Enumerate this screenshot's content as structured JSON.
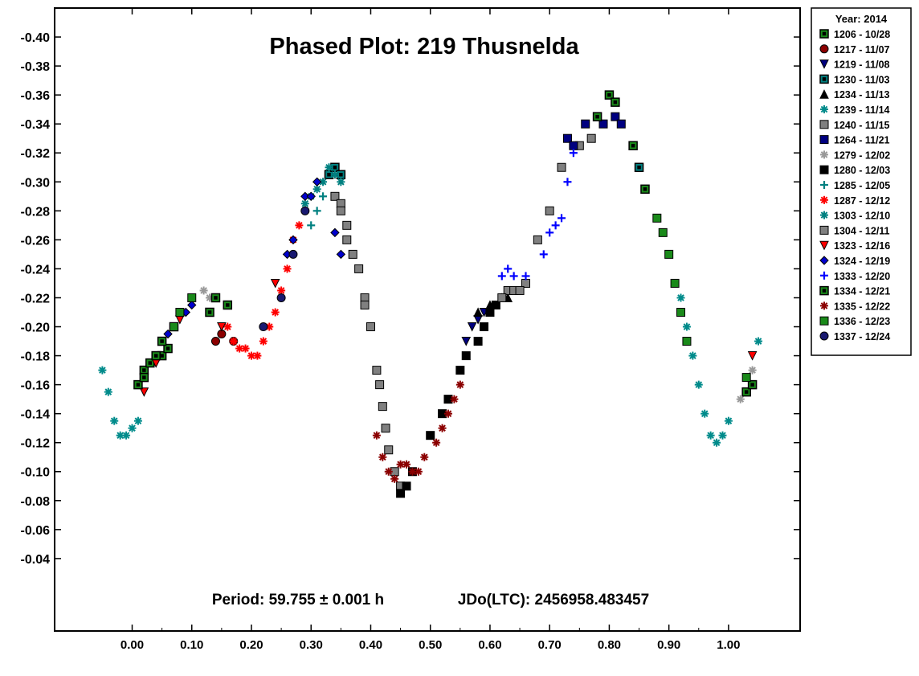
{
  "chart_data": {
    "type": "scatter",
    "title": "Phased Plot: 219 Thusnelda",
    "xlabel": "",
    "ylabel": "",
    "xlim": [
      -0.13,
      1.12
    ],
    "ylim": [
      -0.42,
      0.01
    ],
    "y_inverted": true,
    "x_ticks": [
      0.0,
      0.1,
      0.2,
      0.3,
      0.4,
      0.5,
      0.6,
      0.7,
      0.8,
      0.9,
      1.0
    ],
    "x_tick_labels": [
      "0.00",
      "0.10",
      "0.20",
      "0.30",
      "0.40",
      "0.50",
      "0.60",
      "0.70",
      "0.80",
      "0.90",
      "1.00"
    ],
    "y_ticks": [
      -0.4,
      -0.38,
      -0.36,
      -0.34,
      -0.32,
      -0.3,
      -0.28,
      -0.26,
      -0.24,
      -0.22,
      -0.2,
      -0.18,
      -0.16,
      -0.14,
      -0.12,
      -0.1,
      -0.08,
      -0.06,
      -0.04
    ],
    "y_tick_labels": [
      "-0.40",
      "-0.38",
      "-0.36",
      "-0.34",
      "-0.32",
      "-0.30",
      "-0.28",
      "-0.26",
      "-0.24",
      "-0.22",
      "-0.20",
      "-0.18",
      "-0.16",
      "-0.14",
      "-0.12",
      "-0.10",
      "-0.08",
      "-0.06",
      "-0.04"
    ],
    "grid": false,
    "legend_title": "Year: 2014",
    "legend_position": "outside-right-top",
    "annotations": [
      {
        "text": "Period: 59.755 ± 0.001 h",
        "position": "bottom-center-left"
      },
      {
        "text": "JDo(LTC): 2456958.483457",
        "position": "bottom-center-right"
      }
    ],
    "series": [
      {
        "name": "1206 - 10/28",
        "marker": "square-outline",
        "color": "#1a8a1a",
        "points": [
          [
            0.02,
            -0.17
          ],
          [
            0.03,
            -0.175
          ],
          [
            0.05,
            -0.18
          ],
          [
            0.06,
            -0.185
          ],
          [
            0.07,
            -0.2
          ]
        ]
      },
      {
        "name": "1217 - 11/07",
        "marker": "circle",
        "color": "#8b0000",
        "points": [
          [
            0.14,
            -0.19
          ],
          [
            0.15,
            -0.195
          ],
          [
            0.17,
            -0.19
          ]
        ]
      },
      {
        "name": "1219 - 11/08",
        "marker": "triangle-down",
        "color": "#000080",
        "points": [
          [
            0.56,
            -0.19
          ],
          [
            0.57,
            -0.2
          ],
          [
            0.58,
            -0.205
          ],
          [
            0.59,
            -0.21
          ]
        ]
      },
      {
        "name": "1230 - 11/03",
        "marker": "square-outline",
        "color": "#008080",
        "points": [
          [
            0.33,
            -0.305
          ],
          [
            0.34,
            -0.31
          ],
          [
            0.35,
            -0.305
          ],
          [
            0.85,
            -0.31
          ]
        ]
      },
      {
        "name": "1234 - 11/13",
        "marker": "triangle-up",
        "color": "#000000",
        "points": [
          [
            0.58,
            -0.21
          ],
          [
            0.6,
            -0.215
          ],
          [
            0.62,
            -0.22
          ],
          [
            0.63,
            -0.22
          ]
        ]
      },
      {
        "name": "1239 - 11/14",
        "marker": "asterisk",
        "color": "#008b8b",
        "points": [
          [
            -0.05,
            -0.17
          ],
          [
            -0.04,
            -0.155
          ],
          [
            -0.03,
            -0.135
          ],
          [
            -0.02,
            -0.125
          ],
          [
            -0.01,
            -0.125
          ],
          [
            0.0,
            -0.13
          ],
          [
            0.01,
            -0.135
          ],
          [
            0.92,
            -0.22
          ],
          [
            0.93,
            -0.2
          ],
          [
            0.94,
            -0.18
          ],
          [
            0.95,
            -0.16
          ],
          [
            0.96,
            -0.14
          ],
          [
            0.97,
            -0.125
          ],
          [
            0.98,
            -0.12
          ],
          [
            0.99,
            -0.125
          ],
          [
            1.0,
            -0.135
          ],
          [
            1.05,
            -0.19
          ]
        ]
      },
      {
        "name": "1240 - 11/15",
        "marker": "square",
        "color": "#808080",
        "points": [
          [
            0.34,
            -0.29
          ],
          [
            0.35,
            -0.285
          ],
          [
            0.36,
            -0.26
          ],
          [
            0.37,
            -0.25
          ],
          [
            0.38,
            -0.24
          ],
          [
            0.39,
            -0.22
          ],
          [
            0.4,
            -0.2
          ],
          [
            0.41,
            -0.17
          ],
          [
            0.415,
            -0.16
          ],
          [
            0.42,
            -0.145
          ],
          [
            0.425,
            -0.13
          ],
          [
            0.43,
            -0.115
          ],
          [
            0.44,
            -0.1
          ],
          [
            0.45,
            -0.09
          ],
          [
            0.63,
            -0.225
          ],
          [
            0.64,
            -0.225
          ],
          [
            0.66,
            -0.23
          ],
          [
            0.68,
            -0.26
          ],
          [
            0.7,
            -0.28
          ],
          [
            0.72,
            -0.31
          ],
          [
            0.75,
            -0.325
          ],
          [
            0.77,
            -0.33
          ]
        ]
      },
      {
        "name": "1264 - 11/21",
        "marker": "square",
        "color": "#000080",
        "points": [
          [
            0.73,
            -0.33
          ],
          [
            0.74,
            -0.325
          ],
          [
            0.76,
            -0.34
          ],
          [
            0.78,
            -0.345
          ],
          [
            0.79,
            -0.34
          ],
          [
            0.81,
            -0.345
          ],
          [
            0.82,
            -0.34
          ]
        ]
      },
      {
        "name": "1279 - 12/02",
        "marker": "asterisk",
        "color": "#999999",
        "points": [
          [
            0.05,
            -0.19
          ],
          [
            0.12,
            -0.225
          ],
          [
            0.13,
            -0.22
          ],
          [
            1.02,
            -0.15
          ],
          [
            1.04,
            -0.17
          ]
        ]
      },
      {
        "name": "1280 - 12/03",
        "marker": "square",
        "color": "#000000",
        "points": [
          [
            0.45,
            -0.085
          ],
          [
            0.46,
            -0.09
          ],
          [
            0.47,
            -0.1
          ],
          [
            0.5,
            -0.125
          ],
          [
            0.52,
            -0.14
          ],
          [
            0.53,
            -0.15
          ],
          [
            0.55,
            -0.17
          ],
          [
            0.56,
            -0.18
          ],
          [
            0.58,
            -0.19
          ],
          [
            0.59,
            -0.2
          ],
          [
            0.6,
            -0.21
          ],
          [
            0.61,
            -0.215
          ]
        ]
      },
      {
        "name": "1285 - 12/05",
        "marker": "plus",
        "color": "#008080",
        "points": [
          [
            0.3,
            -0.27
          ],
          [
            0.31,
            -0.28
          ],
          [
            0.32,
            -0.29
          ]
        ]
      },
      {
        "name": "1287 - 12/12",
        "marker": "asterisk",
        "color": "#ff0000",
        "points": [
          [
            0.16,
            -0.2
          ],
          [
            0.17,
            -0.19
          ],
          [
            0.18,
            -0.185
          ],
          [
            0.19,
            -0.185
          ],
          [
            0.2,
            -0.18
          ],
          [
            0.21,
            -0.18
          ],
          [
            0.22,
            -0.19
          ],
          [
            0.23,
            -0.2
          ],
          [
            0.24,
            -0.21
          ],
          [
            0.25,
            -0.225
          ],
          [
            0.26,
            -0.24
          ],
          [
            0.27,
            -0.26
          ],
          [
            0.28,
            -0.27
          ]
        ]
      },
      {
        "name": "1303 - 12/10",
        "marker": "asterisk",
        "color": "#008080",
        "points": [
          [
            0.29,
            -0.285
          ],
          [
            0.3,
            -0.29
          ],
          [
            0.31,
            -0.295
          ],
          [
            0.32,
            -0.3
          ],
          [
            0.33,
            -0.31
          ],
          [
            0.34,
            -0.305
          ],
          [
            0.35,
            -0.3
          ]
        ]
      },
      {
        "name": "1304 - 12/11",
        "marker": "square",
        "color": "#808080",
        "points": [
          [
            0.35,
            -0.28
          ],
          [
            0.36,
            -0.27
          ],
          [
            0.39,
            -0.215
          ],
          [
            0.4,
            -0.2
          ],
          [
            0.62,
            -0.22
          ],
          [
            0.65,
            -0.225
          ]
        ]
      },
      {
        "name": "1323 - 12/16",
        "marker": "triangle-down",
        "color": "#ff0000",
        "points": [
          [
            0.02,
            -0.155
          ],
          [
            0.04,
            -0.175
          ],
          [
            0.08,
            -0.205
          ],
          [
            0.15,
            -0.2
          ],
          [
            0.24,
            -0.23
          ],
          [
            1.04,
            -0.18
          ]
        ]
      },
      {
        "name": "1324 - 12/19",
        "marker": "diamond",
        "color": "#0000cd",
        "points": [
          [
            0.06,
            -0.195
          ],
          [
            0.09,
            -0.21
          ],
          [
            0.1,
            -0.215
          ],
          [
            0.26,
            -0.25
          ],
          [
            0.27,
            -0.26
          ],
          [
            0.29,
            -0.29
          ],
          [
            0.3,
            -0.29
          ],
          [
            0.31,
            -0.3
          ],
          [
            0.34,
            -0.265
          ],
          [
            0.35,
            -0.25
          ]
        ]
      },
      {
        "name": "1333 - 12/20",
        "marker": "plus",
        "color": "#0000ff",
        "points": [
          [
            0.62,
            -0.235
          ],
          [
            0.63,
            -0.24
          ],
          [
            0.64,
            -0.235
          ],
          [
            0.66,
            -0.235
          ],
          [
            0.69,
            -0.25
          ],
          [
            0.7,
            -0.265
          ],
          [
            0.71,
            -0.27
          ],
          [
            0.72,
            -0.275
          ],
          [
            0.73,
            -0.3
          ],
          [
            0.74,
            -0.32
          ]
        ]
      },
      {
        "name": "1334 - 12/21",
        "marker": "square-outline",
        "color": "#1a8a1a",
        "points": [
          [
            0.01,
            -0.16
          ],
          [
            0.02,
            -0.165
          ],
          [
            0.04,
            -0.18
          ],
          [
            0.05,
            -0.19
          ],
          [
            0.13,
            -0.21
          ],
          [
            0.14,
            -0.22
          ],
          [
            0.16,
            -0.215
          ],
          [
            0.78,
            -0.345
          ],
          [
            0.8,
            -0.36
          ],
          [
            0.81,
            -0.355
          ],
          [
            0.84,
            -0.325
          ],
          [
            0.86,
            -0.295
          ],
          [
            1.03,
            -0.155
          ],
          [
            1.04,
            -0.16
          ]
        ]
      },
      {
        "name": "1335 - 12/22",
        "marker": "asterisk",
        "color": "#8b0000",
        "points": [
          [
            0.41,
            -0.125
          ],
          [
            0.42,
            -0.11
          ],
          [
            0.43,
            -0.1
          ],
          [
            0.44,
            -0.095
          ],
          [
            0.45,
            -0.105
          ],
          [
            0.46,
            -0.105
          ],
          [
            0.47,
            -0.1
          ],
          [
            0.48,
            -0.1
          ],
          [
            0.49,
            -0.11
          ],
          [
            0.51,
            -0.12
          ],
          [
            0.52,
            -0.13
          ],
          [
            0.53,
            -0.14
          ],
          [
            0.54,
            -0.15
          ],
          [
            0.55,
            -0.16
          ]
        ]
      },
      {
        "name": "1336 - 12/23",
        "marker": "square",
        "color": "#1a8a1a",
        "points": [
          [
            0.07,
            -0.2
          ],
          [
            0.08,
            -0.21
          ],
          [
            0.1,
            -0.22
          ],
          [
            0.88,
            -0.275
          ],
          [
            0.89,
            -0.265
          ],
          [
            0.9,
            -0.25
          ],
          [
            0.91,
            -0.23
          ],
          [
            0.92,
            -0.21
          ],
          [
            0.93,
            -0.19
          ],
          [
            1.03,
            -0.165
          ]
        ]
      },
      {
        "name": "1337 - 12/24",
        "marker": "circle",
        "color": "#191970",
        "points": [
          [
            0.22,
            -0.2
          ],
          [
            0.25,
            -0.22
          ],
          [
            0.27,
            -0.25
          ],
          [
            0.29,
            -0.28
          ]
        ]
      }
    ]
  }
}
